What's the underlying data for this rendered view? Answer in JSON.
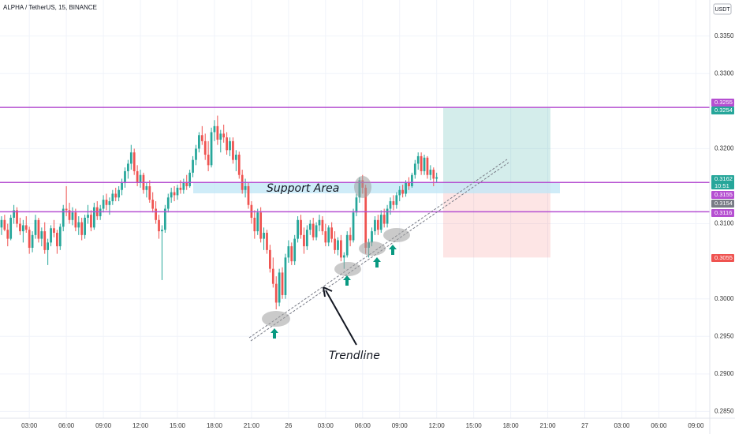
{
  "chart_data": {
    "type": "candlestick",
    "title": "ALPHA / TetherUS, 15, BINANCE",
    "currency": "USDT",
    "up_color": "#26a69a",
    "down_color": "#ef5350",
    "grid": true,
    "xlim": [
      -0.5,
      229.5
    ],
    "ylim": [
      0.2841,
      0.3398
    ],
    "yticks": [
      {
        "value": 0.335,
        "label": "0.3350"
      },
      {
        "value": 0.33,
        "label": "0.3300"
      },
      {
        "value": 0.32,
        "label": "0.3200"
      },
      {
        "value": 0.31,
        "label": "0.3100"
      },
      {
        "value": 0.3,
        "label": "0.3000"
      },
      {
        "value": 0.295,
        "label": "0.2950"
      },
      {
        "value": 0.29,
        "label": "0.2900"
      },
      {
        "value": 0.285,
        "label": "0.2850"
      }
    ],
    "xticks": [
      {
        "value": 9,
        "label": "03:00"
      },
      {
        "value": 21,
        "label": "06:00"
      },
      {
        "value": 33,
        "label": "09:00"
      },
      {
        "value": 45,
        "label": "12:00"
      },
      {
        "value": 57,
        "label": "15:00"
      },
      {
        "value": 69,
        "label": "18:00"
      },
      {
        "value": 81,
        "label": "21:00"
      },
      {
        "value": 93,
        "label": "26"
      },
      {
        "value": 105,
        "label": "03:00"
      },
      {
        "value": 117,
        "label": "06:00"
      },
      {
        "value": 129,
        "label": "09:00"
      },
      {
        "value": 141,
        "label": "12:00"
      },
      {
        "value": 153,
        "label": "15:00"
      },
      {
        "value": 165,
        "label": "18:00"
      },
      {
        "value": 177,
        "label": "21:00"
      },
      {
        "value": 189,
        "label": "27"
      },
      {
        "value": 201,
        "label": "03:00"
      },
      {
        "value": 213,
        "label": "06:00"
      },
      {
        "value": 225,
        "label": "09:00"
      }
    ],
    "levels": [
      {
        "value": 0.3255,
        "label": "0.3255",
        "color": "#b54fd1",
        "line": true
      },
      {
        "value": 0.3254,
        "label": "0.3254",
        "color": "#26a69a",
        "line": false
      },
      {
        "value": 0.3162,
        "label": "0.3162",
        "color": "#26a69a",
        "line": false
      },
      {
        "value": 0.3155,
        "label": "0.3155",
        "color": "#b54fd1",
        "line": true
      },
      {
        "value": 0.3154,
        "label": "0.3154",
        "color": "#787b86",
        "line": false
      },
      {
        "value": 0.3116,
        "label": "0.3116",
        "color": "#b54fd1",
        "line": true
      },
      {
        "value": 0.3055,
        "label": "0.3055",
        "color": "#ef5350",
        "line": false
      }
    ],
    "countdown": "10:51",
    "annotations": [
      "Support Area",
      "Trendline"
    ],
    "ohlc": [
      [
        0.3095,
        0.311,
        0.3085,
        0.3105
      ],
      [
        0.3105,
        0.3112,
        0.309,
        0.3092
      ],
      [
        0.3092,
        0.31,
        0.307,
        0.308
      ],
      [
        0.308,
        0.3112,
        0.3078,
        0.3108
      ],
      [
        0.3108,
        0.3125,
        0.31,
        0.3118
      ],
      [
        0.3118,
        0.3122,
        0.3095,
        0.31
      ],
      [
        0.31,
        0.3108,
        0.3085,
        0.309
      ],
      [
        0.309,
        0.3105,
        0.3075,
        0.3098
      ],
      [
        0.3098,
        0.311,
        0.3088,
        0.3092
      ],
      [
        0.3092,
        0.3096,
        0.306,
        0.3068
      ],
      [
        0.3068,
        0.309,
        0.3062,
        0.3085
      ],
      [
        0.3085,
        0.3112,
        0.308,
        0.3105
      ],
      [
        0.3105,
        0.3108,
        0.3075,
        0.308
      ],
      [
        0.308,
        0.3095,
        0.307,
        0.309
      ],
      [
        0.309,
        0.3102,
        0.306,
        0.3065
      ],
      [
        0.3065,
        0.308,
        0.3045,
        0.3075
      ],
      [
        0.3075,
        0.3098,
        0.307,
        0.3094
      ],
      [
        0.3094,
        0.3105,
        0.3082,
        0.3088
      ],
      [
        0.3088,
        0.3092,
        0.306,
        0.307
      ],
      [
        0.307,
        0.31,
        0.3065,
        0.3096
      ],
      [
        0.3096,
        0.3125,
        0.309,
        0.312
      ],
      [
        0.312,
        0.315,
        0.311,
        0.3118
      ],
      [
        0.3118,
        0.3128,
        0.31,
        0.3105
      ],
      [
        0.3105,
        0.3122,
        0.3098,
        0.3115
      ],
      [
        0.3115,
        0.312,
        0.309,
        0.3095
      ],
      [
        0.3095,
        0.311,
        0.3085,
        0.3102
      ],
      [
        0.3102,
        0.3108,
        0.3078,
        0.3085
      ],
      [
        0.3085,
        0.3112,
        0.308,
        0.3108
      ],
      [
        0.3108,
        0.3125,
        0.31,
        0.3112
      ],
      [
        0.3112,
        0.3118,
        0.309,
        0.3095
      ],
      [
        0.3095,
        0.3128,
        0.3092,
        0.3122
      ],
      [
        0.3122,
        0.313,
        0.3105,
        0.311
      ],
      [
        0.311,
        0.3125,
        0.3105,
        0.312
      ],
      [
        0.312,
        0.3138,
        0.3115,
        0.3132
      ],
      [
        0.3132,
        0.314,
        0.3118,
        0.3125
      ],
      [
        0.3125,
        0.3135,
        0.3112,
        0.313
      ],
      [
        0.313,
        0.3145,
        0.3125,
        0.314
      ],
      [
        0.314,
        0.3148,
        0.313,
        0.3135
      ],
      [
        0.3135,
        0.315,
        0.313,
        0.3145
      ],
      [
        0.3145,
        0.316,
        0.3138,
        0.3155
      ],
      [
        0.3155,
        0.3175,
        0.3148,
        0.317
      ],
      [
        0.317,
        0.3185,
        0.316,
        0.318
      ],
      [
        0.318,
        0.3205,
        0.3172,
        0.3195
      ],
      [
        0.3195,
        0.32,
        0.3165,
        0.317
      ],
      [
        0.317,
        0.3178,
        0.315,
        0.3155
      ],
      [
        0.3155,
        0.3172,
        0.3148,
        0.3165
      ],
      [
        0.3165,
        0.3168,
        0.314,
        0.3145
      ],
      [
        0.3145,
        0.3155,
        0.3135,
        0.315
      ],
      [
        0.315,
        0.3158,
        0.3128,
        0.3132
      ],
      [
        0.3132,
        0.3142,
        0.3115,
        0.312
      ],
      [
        0.312,
        0.313,
        0.31,
        0.3105
      ],
      [
        0.3105,
        0.3112,
        0.308,
        0.309
      ],
      [
        0.309,
        0.3098,
        0.3025,
        0.3092
      ],
      [
        0.3092,
        0.3125,
        0.3088,
        0.312
      ],
      [
        0.312,
        0.314,
        0.3115,
        0.3135
      ],
      [
        0.3135,
        0.3148,
        0.3128,
        0.3142
      ],
      [
        0.3142,
        0.315,
        0.313,
        0.3138
      ],
      [
        0.3138,
        0.3152,
        0.3132,
        0.3148
      ],
      [
        0.3148,
        0.3158,
        0.314,
        0.3145
      ],
      [
        0.3145,
        0.316,
        0.314,
        0.3155
      ],
      [
        0.3155,
        0.3165,
        0.3145,
        0.315
      ],
      [
        0.315,
        0.3172,
        0.3148,
        0.3168
      ],
      [
        0.3168,
        0.319,
        0.3162,
        0.3185
      ],
      [
        0.3185,
        0.3205,
        0.3178,
        0.32
      ],
      [
        0.32,
        0.3222,
        0.3195,
        0.3218
      ],
      [
        0.3218,
        0.323,
        0.3205,
        0.321
      ],
      [
        0.321,
        0.322,
        0.3185,
        0.3192
      ],
      [
        0.3192,
        0.321,
        0.317,
        0.3178
      ],
      [
        0.3178,
        0.3228,
        0.3175,
        0.3222
      ],
      [
        0.3222,
        0.3238,
        0.321,
        0.323
      ],
      [
        0.323,
        0.3244,
        0.3205,
        0.3212
      ],
      [
        0.3212,
        0.3225,
        0.3195,
        0.322
      ],
      [
        0.322,
        0.3232,
        0.3208,
        0.3215
      ],
      [
        0.3215,
        0.3222,
        0.3192,
        0.3198
      ],
      [
        0.3198,
        0.3215,
        0.319,
        0.321
      ],
      [
        0.321,
        0.3215,
        0.318,
        0.3185
      ],
      [
        0.3185,
        0.3198,
        0.317,
        0.3192
      ],
      [
        0.3192,
        0.3196,
        0.316,
        0.3165
      ],
      [
        0.3165,
        0.3172,
        0.314,
        0.3145
      ],
      [
        0.3145,
        0.316,
        0.3135,
        0.315
      ],
      [
        0.315,
        0.3155,
        0.312,
        0.3125
      ],
      [
        0.3125,
        0.313,
        0.31,
        0.3108
      ],
      [
        0.3108,
        0.3118,
        0.308,
        0.309
      ],
      [
        0.309,
        0.312,
        0.3085,
        0.3115
      ],
      [
        0.3115,
        0.3122,
        0.3075,
        0.308
      ],
      [
        0.308,
        0.3095,
        0.3065,
        0.3088
      ],
      [
        0.3088,
        0.3092,
        0.306,
        0.3065
      ],
      [
        0.3065,
        0.3072,
        0.3035,
        0.304
      ],
      [
        0.304,
        0.3055,
        0.3015,
        0.302
      ],
      [
        0.302,
        0.303,
        0.2986,
        0.2995
      ],
      [
        0.2995,
        0.304,
        0.299,
        0.3035
      ],
      [
        0.3035,
        0.3042,
        0.3,
        0.3005
      ],
      [
        0.3005,
        0.306,
        0.3,
        0.3055
      ],
      [
        0.3055,
        0.3078,
        0.3048,
        0.307
      ],
      [
        0.307,
        0.3075,
        0.3045,
        0.305
      ],
      [
        0.305,
        0.3085,
        0.3045,
        0.308
      ],
      [
        0.308,
        0.311,
        0.3075,
        0.3105
      ],
      [
        0.3105,
        0.3112,
        0.308,
        0.3085
      ],
      [
        0.3085,
        0.3095,
        0.306,
        0.307
      ],
      [
        0.307,
        0.3098,
        0.3065,
        0.3092
      ],
      [
        0.3092,
        0.3105,
        0.3085,
        0.31
      ],
      [
        0.31,
        0.3108,
        0.3078,
        0.3082
      ],
      [
        0.3082,
        0.3102,
        0.3078,
        0.3098
      ],
      [
        0.3098,
        0.3112,
        0.309,
        0.3105
      ],
      [
        0.3105,
        0.311,
        0.3085,
        0.309
      ],
      [
        0.309,
        0.31,
        0.307,
        0.3075
      ],
      [
        0.3075,
        0.3098,
        0.307,
        0.3095
      ],
      [
        0.3095,
        0.3102,
        0.3075,
        0.308
      ],
      [
        0.308,
        0.309,
        0.306,
        0.3065
      ],
      [
        0.3065,
        0.3082,
        0.3058,
        0.3078
      ],
      [
        0.3078,
        0.3085,
        0.305,
        0.3055
      ],
      [
        0.3055,
        0.3062,
        0.304,
        0.3058
      ],
      [
        0.3058,
        0.309,
        0.3055,
        0.3085
      ],
      [
        0.3085,
        0.3095,
        0.307,
        0.3078
      ],
      [
        0.3078,
        0.312,
        0.3075,
        0.3115
      ],
      [
        0.3115,
        0.314,
        0.311,
        0.3135
      ],
      [
        0.3135,
        0.3162,
        0.3128,
        0.3158
      ],
      [
        0.3158,
        0.3165,
        0.314,
        0.3148
      ],
      [
        0.3148,
        0.3152,
        0.306,
        0.3068
      ],
      [
        0.3068,
        0.308,
        0.3055,
        0.3075
      ],
      [
        0.3075,
        0.3095,
        0.307,
        0.309
      ],
      [
        0.309,
        0.311,
        0.3085,
        0.3105
      ],
      [
        0.3105,
        0.3112,
        0.3085,
        0.3092
      ],
      [
        0.3092,
        0.3118,
        0.3088,
        0.3112
      ],
      [
        0.3112,
        0.312,
        0.3095,
        0.31
      ],
      [
        0.31,
        0.3125,
        0.3095,
        0.312
      ],
      [
        0.312,
        0.3135,
        0.3112,
        0.313
      ],
      [
        0.313,
        0.3138,
        0.3118,
        0.3125
      ],
      [
        0.3125,
        0.3142,
        0.312,
        0.3138
      ],
      [
        0.3138,
        0.315,
        0.313,
        0.3145
      ],
      [
        0.3145,
        0.3152,
        0.3135,
        0.314
      ],
      [
        0.314,
        0.3158,
        0.3136,
        0.3155
      ],
      [
        0.3155,
        0.3162,
        0.3145,
        0.315
      ],
      [
        0.315,
        0.3168,
        0.3148,
        0.3165
      ],
      [
        0.3165,
        0.3185,
        0.316,
        0.318
      ],
      [
        0.318,
        0.3195,
        0.3172,
        0.319
      ],
      [
        0.319,
        0.3195,
        0.3165,
        0.317
      ],
      [
        0.317,
        0.3192,
        0.3165,
        0.3188
      ],
      [
        0.3188,
        0.319,
        0.316,
        0.3165
      ],
      [
        0.3165,
        0.3178,
        0.3158,
        0.3172
      ],
      [
        0.3172,
        0.3175,
        0.315,
        0.316
      ],
      [
        0.316,
        0.3168,
        0.3155,
        0.3162
      ]
    ]
  }
}
